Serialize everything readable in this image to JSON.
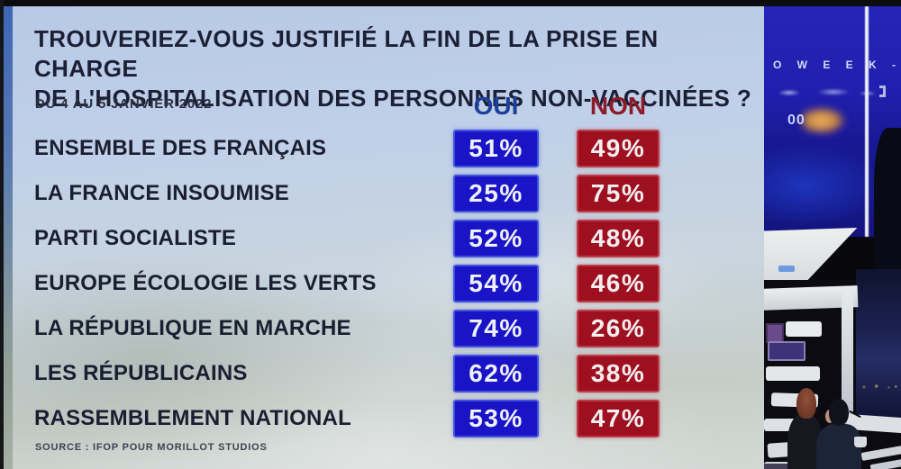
{
  "poll": {
    "title_lines": [
      "TROUVERIEZ-VOUS JUSTIFIÉ LA FIN DE LA PRISE EN CHARGE",
      "DE L'HOSPITALISATION DES PERSONNES NON-VACCINÉES ?"
    ],
    "date_range": "DU 4 AU 5 JANVIER 2022",
    "columns": {
      "oui": "OUI",
      "non": "NON"
    },
    "rows": [
      {
        "label": "ENSEMBLE DES FRANÇAIS",
        "oui": "51%",
        "non": "49%"
      },
      {
        "label": "LA FRANCE INSOUMISE",
        "oui": "25%",
        "non": "75%"
      },
      {
        "label": "PARTI SOCIALISTE",
        "oui": "52%",
        "non": "48%"
      },
      {
        "label": "EUROPE ÉCOLOGIE LES VERTS",
        "oui": "54%",
        "non": "46%"
      },
      {
        "label": "LA RÉPUBLIQUE EN MARCHE",
        "oui": "74%",
        "non": "26%"
      },
      {
        "label": "LES RÉPUBLICAINS",
        "oui": "62%",
        "non": "38%"
      },
      {
        "label": "RASSEMBLEMENT NATIONAL",
        "oui": "53%",
        "non": "47%"
      }
    ],
    "source": "SOURCE : IFOP POUR MORILLOT STUDIOS"
  },
  "studio": {
    "screen_caption": "O  W E E K -",
    "screen_number": "00"
  },
  "colors": {
    "oui_box": "#1a14c7",
    "non_box": "#9e1020",
    "oui_header_text": "#1d3e9c",
    "non_header_text": "#8e1b2a",
    "panel_background": "#c4d1e0",
    "title_text": "#1b2034"
  },
  "chart_data": {
    "type": "table",
    "title": "TROUVERIEZ-VOUS JUSTIFIÉ LA FIN DE LA PRISE EN CHARGE DE L'HOSPITALISATION DES PERSONNES NON-VACCINÉES ?",
    "subtitle": "DU 4 AU 5 JANVIER 2022",
    "columns": [
      "OUI",
      "NON"
    ],
    "categories": [
      "ENSEMBLE DES FRANÇAIS",
      "LA FRANCE INSOUMISE",
      "PARTI SOCIALISTE",
      "EUROPE ÉCOLOGIE LES VERTS",
      "LA RÉPUBLIQUE EN MARCHE",
      "LES RÉPUBLICAINS",
      "RASSEMBLEMENT NATIONAL"
    ],
    "series": [
      {
        "name": "OUI",
        "values": [
          51,
          25,
          52,
          54,
          74,
          62,
          53
        ]
      },
      {
        "name": "NON",
        "values": [
          49,
          75,
          48,
          46,
          26,
          38,
          47
        ]
      }
    ],
    "unit": "%",
    "source": "SOURCE : IFOP POUR MORILLOT STUDIOS"
  }
}
